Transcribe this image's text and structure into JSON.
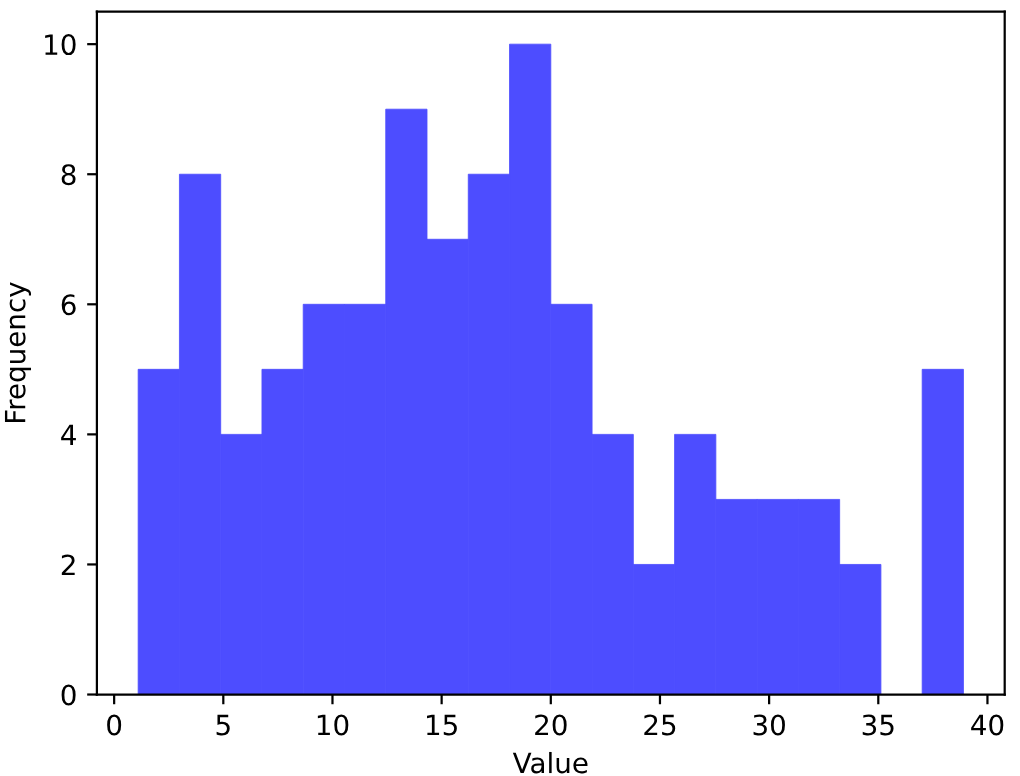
{
  "chart_data": {
    "type": "histogram",
    "xlabel": "Value",
    "ylabel": "Frequency",
    "bins": [
      1.1,
      2.99,
      4.88,
      6.77,
      8.66,
      10.55,
      12.44,
      14.33,
      16.22,
      18.11,
      20.0,
      21.89,
      23.78,
      25.67,
      27.56,
      29.45,
      31.34,
      33.23,
      35.12,
      37.01,
      38.9
    ],
    "values": [
      5,
      8,
      4,
      5,
      6,
      6,
      9,
      7,
      8,
      10,
      6,
      4,
      2,
      4,
      3,
      3,
      3,
      2,
      0,
      5
    ],
    "color": "#4d4dff",
    "xlim": [
      -0.79,
      40.79
    ],
    "ylim": [
      0,
      10.5
    ],
    "xticks": [
      0,
      5,
      10,
      15,
      20,
      25,
      30,
      35,
      40
    ],
    "yticks": [
      0,
      2,
      4,
      6,
      8,
      10
    ]
  }
}
